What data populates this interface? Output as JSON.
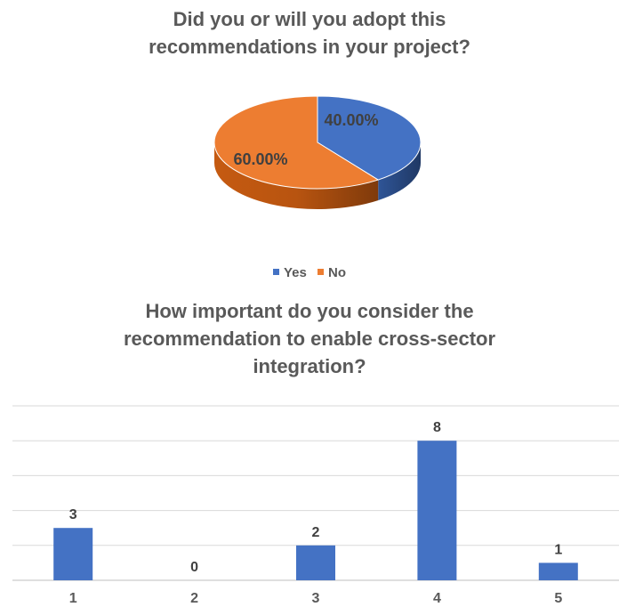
{
  "colors": {
    "yes": "#4472C4",
    "no": "#ED7D31",
    "grid": "#D9D9D9",
    "text": "#595959"
  },
  "chart_data": [
    {
      "type": "pie",
      "title_lines": [
        "Did you or will you adopt this",
        "recommendations in your project?"
      ],
      "categories": [
        "Yes",
        "No"
      ],
      "values": [
        40,
        60
      ],
      "data_labels": [
        "40.00%",
        "60.00%"
      ],
      "legend": {
        "position": "bottom",
        "entries": [
          "Yes",
          "No"
        ]
      },
      "style": "3d"
    },
    {
      "type": "bar",
      "title_lines": [
        "How important do you consider the",
        "recommendation to enable cross-sector",
        "integration?"
      ],
      "categories": [
        "1",
        "2",
        "3",
        "4",
        "5"
      ],
      "values": [
        3,
        0,
        2,
        8,
        1
      ],
      "data_labels": [
        "3",
        "0",
        "2",
        "8",
        "1"
      ],
      "ylim": [
        0,
        10
      ],
      "grid": true,
      "xlabel": "",
      "ylabel": ""
    }
  ]
}
